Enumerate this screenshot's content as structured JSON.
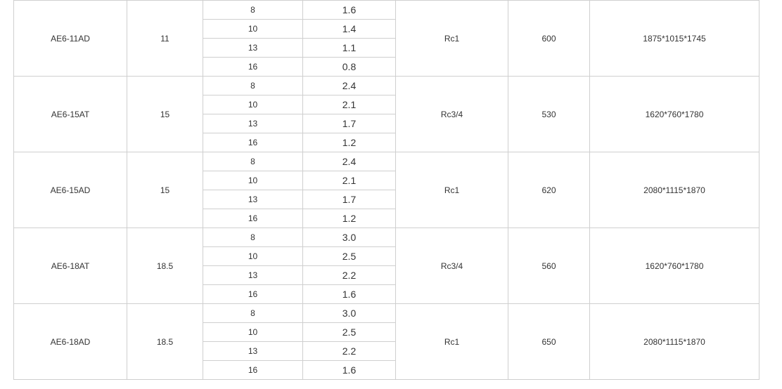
{
  "table": {
    "rows": [
      {
        "model": "AE6-11AD",
        "power": "11",
        "settings": [
          [
            "8",
            "1.6"
          ],
          [
            "10",
            "1.4"
          ],
          [
            "13",
            "1.1"
          ],
          [
            "16",
            "0.8"
          ]
        ],
        "port": "Rc1",
        "weight": "600",
        "dimensions": "1875*1015*1745"
      },
      {
        "model": "AE6-15AT",
        "power": "15",
        "settings": [
          [
            "8",
            "2.4"
          ],
          [
            "10",
            "2.1"
          ],
          [
            "13",
            "1.7"
          ],
          [
            "16",
            "1.2"
          ]
        ],
        "port": "Rc3/4",
        "weight": "530",
        "dimensions": "1620*760*1780"
      },
      {
        "model": "AE6-15AD",
        "power": "15",
        "settings": [
          [
            "8",
            "2.4"
          ],
          [
            "10",
            "2.1"
          ],
          [
            "13",
            "1.7"
          ],
          [
            "16",
            "1.2"
          ]
        ],
        "port": "Rc1",
        "weight": "620",
        "dimensions": "2080*1115*1870"
      },
      {
        "model": "AE6-18AT",
        "power": "18.5",
        "settings": [
          [
            "8",
            "3.0"
          ],
          [
            "10",
            "2.5"
          ],
          [
            "13",
            "2.2"
          ],
          [
            "16",
            "1.6"
          ]
        ],
        "port": "Rc3/4",
        "weight": "560",
        "dimensions": "1620*760*1780"
      },
      {
        "model": "AE6-18AD",
        "power": "18.5",
        "settings": [
          [
            "8",
            "3.0"
          ],
          [
            "10",
            "2.5"
          ],
          [
            "13",
            "2.2"
          ],
          [
            "16",
            "1.6"
          ]
        ],
        "port": "Rc1",
        "weight": "650",
        "dimensions": "2080*1115*1870"
      }
    ]
  }
}
